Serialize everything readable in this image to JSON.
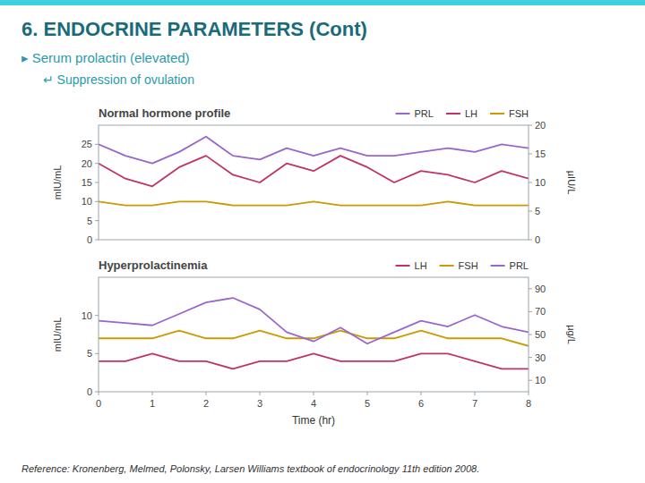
{
  "title": "6. ENDOCRINE PARAMETERS (Cont)",
  "annotations": [
    "▸ Serum prolactin (elevated)",
    "↵ Suppression of ovulation",
    "Reference: Kronenberg, Melmed, Polonsky, Larsen Williams textbook of endocrinology 11th edition 2008."
  ],
  "chart_data": [
    {
      "type": "line",
      "title": "Normal hormone profile",
      "ylabel": "mIU/mL",
      "y2label": "µIU/L",
      "x": [
        0,
        0.5,
        1,
        1.5,
        2,
        2.5,
        3,
        3.5,
        4,
        4.5,
        5,
        5.5,
        6,
        6.5,
        7,
        7.5,
        8
      ],
      "xlim": [
        0,
        8
      ],
      "ylim": [
        0,
        30
      ],
      "yticks": [
        0,
        5,
        10,
        15,
        20,
        25
      ],
      "y2lim": [
        0,
        20
      ],
      "y2ticks": [
        0,
        5,
        10,
        15,
        20
      ],
      "grid": false,
      "legend": "top-right",
      "series": [
        {
          "name": "PRL",
          "color": "#9966cc",
          "values": [
            25,
            22,
            20,
            23,
            27,
            22,
            21,
            24,
            22,
            24,
            22,
            22,
            23,
            24,
            23,
            25,
            24
          ]
        },
        {
          "name": "LH",
          "color": "#c0336a",
          "values": [
            20,
            16,
            14,
            19,
            22,
            17,
            15,
            20,
            18,
            22,
            19,
            15,
            18,
            17,
            15,
            18,
            16
          ]
        },
        {
          "name": "FSH",
          "color": "#cc9900",
          "values": [
            10,
            9,
            9,
            10,
            10,
            9,
            9,
            9,
            10,
            9,
            9,
            9,
            9,
            10,
            9,
            9,
            9
          ]
        }
      ]
    },
    {
      "type": "line",
      "title": "Hyperprolactinemia",
      "xlabel": "Time (hr)",
      "ylabel": "mIU/mL",
      "y2label": "µg/L",
      "x": [
        0,
        0.5,
        1,
        1.5,
        2,
        2.5,
        3,
        3.5,
        4,
        4.5,
        5,
        5.5,
        6,
        6.5,
        7,
        7.5,
        8
      ],
      "xlim": [
        0,
        8
      ],
      "xticks": [
        0,
        1,
        2,
        3,
        4,
        5,
        6,
        7,
        8
      ],
      "ylim": [
        0,
        15
      ],
      "yticks": [
        0,
        5,
        10
      ],
      "y2lim": [
        0,
        100
      ],
      "y2ticks": [
        10,
        30,
        50,
        70,
        90
      ],
      "grid": false,
      "legend": "top-right",
      "series": [
        {
          "name": "LH",
          "color": "#c0336a",
          "values": [
            4,
            4,
            5,
            4,
            4,
            3,
            4,
            4,
            5,
            4,
            4,
            4,
            5,
            5,
            4,
            3,
            3
          ]
        },
        {
          "name": "FSH",
          "color": "#cc9900",
          "values": [
            7,
            7,
            7,
            8,
            7,
            7,
            8,
            7,
            7,
            8,
            7,
            7,
            8,
            7,
            7,
            7,
            6
          ]
        },
        {
          "name": "PRL",
          "color": "#9966cc",
          "axis": "y2",
          "values": [
            62,
            60,
            58,
            68,
            78,
            82,
            72,
            52,
            44,
            56,
            42,
            52,
            62,
            57,
            67,
            57,
            52
          ]
        }
      ]
    }
  ]
}
